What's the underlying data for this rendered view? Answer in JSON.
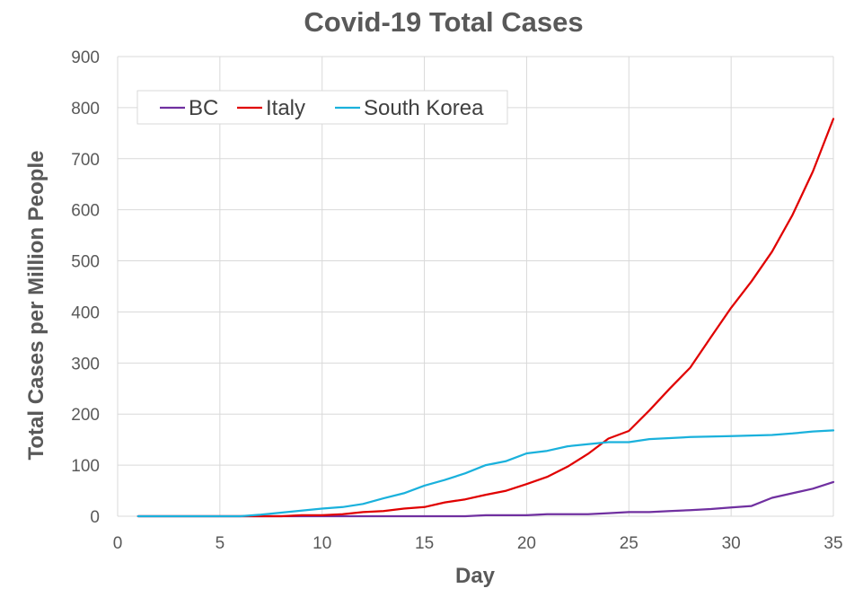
{
  "chart_data": {
    "type": "line",
    "title": "Covid-19 Total Cases",
    "xlabel": "Day",
    "ylabel": "Total Cases per Million People",
    "xlim": [
      0,
      35
    ],
    "ylim": [
      0,
      900
    ],
    "xticks": [
      0,
      5,
      10,
      15,
      20,
      25,
      30,
      35
    ],
    "yticks": [
      0,
      100,
      200,
      300,
      400,
      500,
      600,
      700,
      800,
      900
    ],
    "grid": true,
    "legend_position": "top-left",
    "x": [
      1,
      2,
      3,
      4,
      5,
      6,
      7,
      8,
      9,
      10,
      11,
      12,
      13,
      14,
      15,
      16,
      17,
      18,
      19,
      20,
      21,
      22,
      23,
      24,
      25,
      26,
      27,
      28,
      29,
      30,
      31,
      32,
      33,
      34,
      35
    ],
    "series": [
      {
        "name": "BC",
        "color": "#7030a0",
        "values": [
          0,
          0,
          0,
          0,
          0,
          0,
          0,
          0,
          0,
          0,
          0,
          0,
          0,
          0,
          0,
          0,
          0,
          2,
          2,
          2,
          4,
          4,
          4,
          6,
          8,
          8,
          10,
          12,
          14,
          17,
          20,
          36,
          45,
          54,
          67
        ]
      },
      {
        "name": "Italy",
        "color": "#e00000",
        "values": [
          0,
          0,
          0,
          0,
          0,
          0,
          0,
          0,
          2,
          2,
          4,
          8,
          10,
          15,
          18,
          27,
          33,
          42,
          50,
          63,
          77,
          97,
          122,
          152,
          167,
          207,
          250,
          291,
          350,
          408,
          460,
          518,
          590,
          675,
          778
        ]
      },
      {
        "name": "South Korea",
        "color": "#1ab1dc",
        "values": [
          0,
          0,
          0,
          0,
          0,
          0,
          3,
          7,
          11,
          15,
          18,
          24,
          35,
          45,
          60,
          71,
          84,
          100,
          108,
          123,
          128,
          137,
          141,
          145,
          145,
          151,
          153,
          155,
          156,
          157,
          158,
          159,
          162,
          166,
          168
        ]
      }
    ]
  }
}
